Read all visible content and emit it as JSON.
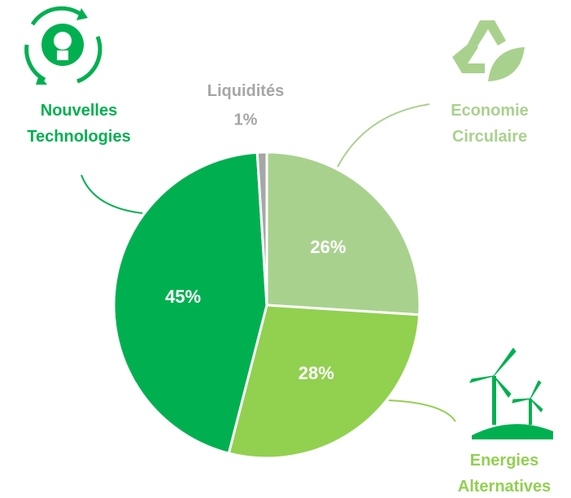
{
  "chart_data": {
    "type": "pie",
    "categories": [
      "Economie Circulaire",
      "Energies Alternatives",
      "Nouvelles Technologies",
      "Liquidités"
    ],
    "values": [
      26,
      28,
      45,
      1
    ],
    "value_labels": [
      "26%",
      "28%",
      "45%",
      "1%"
    ],
    "colors": [
      "#a9d18e",
      "#92d050",
      "#00b050",
      "#a6a6a6"
    ]
  }
}
